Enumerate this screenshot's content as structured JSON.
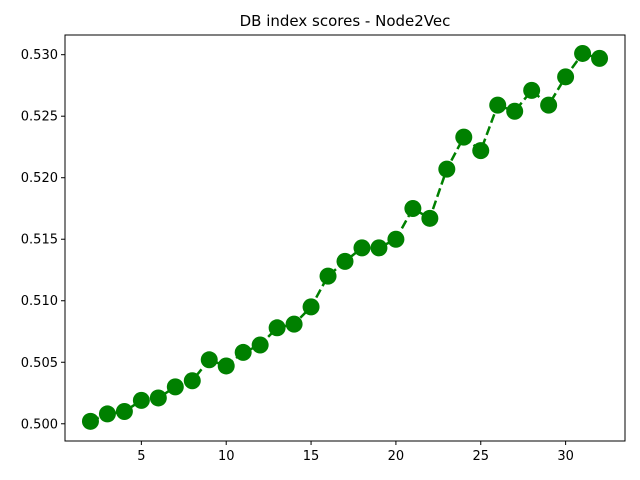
{
  "chart_data": {
    "type": "line",
    "title": "DB index scores - Node2Vec",
    "xlabel": "",
    "ylabel": "",
    "x": [
      2,
      3,
      4,
      5,
      6,
      7,
      8,
      9,
      10,
      11,
      12,
      13,
      14,
      15,
      16,
      17,
      18,
      19,
      20,
      21,
      22,
      23,
      24,
      25,
      26,
      27,
      28,
      29,
      30,
      31,
      32
    ],
    "series": [
      {
        "values": [
          0.5002,
          0.5008,
          0.501,
          0.5019,
          0.5021,
          0.503,
          0.5035,
          0.5052,
          0.5047,
          0.5058,
          0.5064,
          0.5078,
          0.5081,
          0.5095,
          0.512,
          0.5132,
          0.5143,
          0.5143,
          0.515,
          0.5175,
          0.5167,
          0.5207,
          0.5233,
          0.5222,
          0.5259,
          0.5254,
          0.5271,
          0.5259,
          0.5282,
          0.5301,
          0.5297
        ],
        "color": "#008000",
        "line_style": "dashed",
        "marker": "circle"
      }
    ],
    "xlim": [
      0.5,
      33.5
    ],
    "ylim": [
      0.4986,
      0.5316
    ],
    "xticks": [
      5,
      10,
      15,
      20,
      25,
      30
    ],
    "yticks": [
      0.5,
      0.505,
      0.51,
      0.515,
      0.52,
      0.525,
      0.53
    ],
    "xtick_labels": [
      "5",
      "10",
      "15",
      "20",
      "25",
      "30"
    ],
    "ytick_labels": [
      "0.500",
      "0.505",
      "0.510",
      "0.515",
      "0.520",
      "0.525",
      "0.530"
    ],
    "grid": false,
    "legend": "none"
  }
}
